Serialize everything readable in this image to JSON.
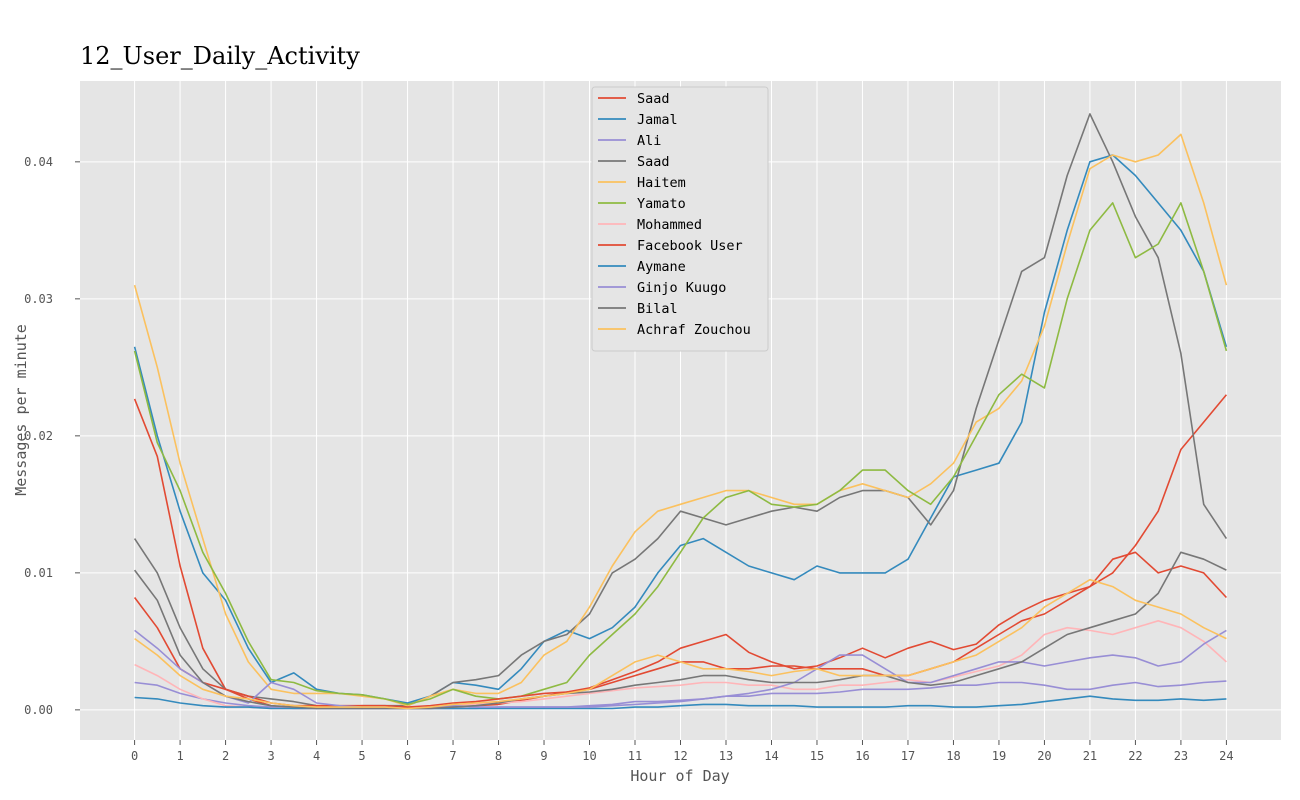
{
  "chart_data": {
    "type": "line",
    "title": "12_User_Daily_Activity",
    "xlabel": "Hour of Day",
    "ylabel": "Messages per minute",
    "xlim": [
      -1.2,
      25.2
    ],
    "ylim": [
      -0.0022,
      0.0459
    ],
    "x_ticks": [
      0,
      1,
      2,
      3,
      4,
      5,
      6,
      7,
      8,
      9,
      10,
      11,
      12,
      13,
      14,
      15,
      16,
      17,
      18,
      19,
      20,
      21,
      22,
      23,
      24
    ],
    "y_ticks": [
      0.0,
      0.01,
      0.02,
      0.03,
      0.04
    ],
    "y_tick_labels": [
      "0.00",
      "0.01",
      "0.02",
      "0.03",
      "0.04"
    ],
    "grid": true,
    "legend_position": "top-center",
    "background_color": "#e5e5e5",
    "x": [
      0,
      0.5,
      1,
      1.5,
      2,
      2.5,
      3,
      3.5,
      4,
      4.5,
      5,
      5.5,
      6,
      6.5,
      7,
      7.5,
      8,
      8.5,
      9,
      9.5,
      10,
      10.5,
      11,
      11.5,
      12,
      12.5,
      13,
      13.5,
      14,
      14.5,
      15,
      15.5,
      16,
      16.5,
      17,
      17.5,
      18,
      18.5,
      19,
      19.5,
      20,
      20.5,
      21,
      21.5,
      22,
      22.5,
      23,
      23.5,
      24
    ],
    "series": [
      {
        "name": "Saad",
        "color": "#E24A33",
        "values": [
          0.0227,
          0.0185,
          0.0105,
          0.0045,
          0.0015,
          0.0008,
          0.0003,
          0.0001,
          0.0001,
          0.0001,
          0.0001,
          0.0001,
          0.0001,
          0.0001,
          0.0002,
          0.0003,
          0.0004,
          0.0007,
          0.001,
          0.0013,
          0.0016,
          0.0022,
          0.0028,
          0.0035,
          0.0045,
          0.005,
          0.0055,
          0.0042,
          0.0035,
          0.003,
          0.0032,
          0.0038,
          0.0045,
          0.0038,
          0.0045,
          0.005,
          0.0044,
          0.0048,
          0.0062,
          0.0072,
          0.008,
          0.0085,
          0.009,
          0.01,
          0.012,
          0.0145,
          0.019,
          0.021,
          0.023
        ]
      },
      {
        "name": "Jamal",
        "color": "#348ABD",
        "values": [
          0.0265,
          0.02,
          0.0145,
          0.01,
          0.008,
          0.0045,
          0.002,
          0.0027,
          0.0015,
          0.0012,
          0.0011,
          0.0008,
          0.0005,
          0.001,
          0.002,
          0.0018,
          0.0015,
          0.003,
          0.005,
          0.0058,
          0.0052,
          0.006,
          0.0075,
          0.01,
          0.012,
          0.0125,
          0.0115,
          0.0105,
          0.01,
          0.0095,
          0.0105,
          0.01,
          0.01,
          0.01,
          0.011,
          0.014,
          0.017,
          0.0175,
          0.018,
          0.021,
          0.029,
          0.035,
          0.04,
          0.0405,
          0.039,
          0.037,
          0.035,
          0.032,
          0.0265
        ]
      },
      {
        "name": "Ali",
        "color": "#988ED5",
        "values": [
          0.002,
          0.0018,
          0.0012,
          0.0008,
          0.0005,
          0.0003,
          0.0002,
          0.0001,
          0.0001,
          0.0001,
          0.0001,
          0.0001,
          0.0001,
          0.0001,
          0.0001,
          0.0001,
          0.0002,
          0.0002,
          0.0002,
          0.0002,
          0.0003,
          0.0004,
          0.0006,
          0.0006,
          0.0007,
          0.0008,
          0.001,
          0.001,
          0.0012,
          0.0012,
          0.0012,
          0.0013,
          0.0015,
          0.0015,
          0.0015,
          0.0016,
          0.0018,
          0.0018,
          0.002,
          0.002,
          0.0018,
          0.0015,
          0.0015,
          0.0018,
          0.002,
          0.0017,
          0.0018,
          0.002,
          0.0021
        ]
      },
      {
        "name": "Saad",
        "color": "#777777",
        "values": [
          0.0125,
          0.01,
          0.006,
          0.003,
          0.0015,
          0.001,
          0.0008,
          0.0006,
          0.0003,
          0.0002,
          0.0003,
          0.0003,
          0.0003,
          0.001,
          0.002,
          0.0022,
          0.0025,
          0.004,
          0.005,
          0.0055,
          0.007,
          0.01,
          0.011,
          0.0125,
          0.0145,
          0.014,
          0.0135,
          0.014,
          0.0145,
          0.0148,
          0.0145,
          0.0155,
          0.016,
          0.016,
          0.0155,
          0.0135,
          0.016,
          0.022,
          0.027,
          0.032,
          0.033,
          0.039,
          0.0435,
          0.04,
          0.036,
          0.033,
          0.026,
          0.015,
          0.0125
        ]
      },
      {
        "name": "Haitem",
        "color": "#FBC15E",
        "values": [
          0.031,
          0.025,
          0.018,
          0.0125,
          0.007,
          0.0035,
          0.0015,
          0.0012,
          0.0012,
          0.0012,
          0.001,
          0.0008,
          0.0003,
          0.001,
          0.0015,
          0.0012,
          0.0012,
          0.002,
          0.004,
          0.005,
          0.0075,
          0.0105,
          0.013,
          0.0145,
          0.015,
          0.0155,
          0.016,
          0.016,
          0.0155,
          0.015,
          0.015,
          0.016,
          0.0165,
          0.016,
          0.0155,
          0.0165,
          0.018,
          0.021,
          0.022,
          0.024,
          0.028,
          0.034,
          0.0395,
          0.0405,
          0.04,
          0.0405,
          0.042,
          0.037,
          0.031
        ]
      },
      {
        "name": "Yamato",
        "color": "#8EBA42",
        "values": [
          0.0262,
          0.0195,
          0.016,
          0.0115,
          0.0085,
          0.005,
          0.0022,
          0.002,
          0.0014,
          0.0012,
          0.0011,
          0.0008,
          0.0004,
          0.0008,
          0.0015,
          0.001,
          0.0008,
          0.001,
          0.0015,
          0.002,
          0.004,
          0.0055,
          0.007,
          0.009,
          0.0115,
          0.014,
          0.0155,
          0.016,
          0.015,
          0.0148,
          0.015,
          0.016,
          0.0175,
          0.0175,
          0.016,
          0.015,
          0.017,
          0.02,
          0.023,
          0.0245,
          0.0235,
          0.03,
          0.035,
          0.037,
          0.033,
          0.034,
          0.037,
          0.032,
          0.0262
        ]
      },
      {
        "name": "Mohammed",
        "color": "#FFB5B8",
        "values": [
          0.0033,
          0.0025,
          0.0015,
          0.0008,
          0.0003,
          0.0002,
          0.0001,
          0.0001,
          0.0001,
          0.0001,
          0.0001,
          0.0001,
          0.0001,
          0.0002,
          0.0003,
          0.0004,
          0.0005,
          0.0006,
          0.0008,
          0.001,
          0.0012,
          0.0014,
          0.0016,
          0.0017,
          0.0018,
          0.002,
          0.002,
          0.0018,
          0.0018,
          0.0015,
          0.0015,
          0.0018,
          0.0018,
          0.002,
          0.0022,
          0.002,
          0.0024,
          0.0028,
          0.0032,
          0.004,
          0.0055,
          0.006,
          0.0058,
          0.0055,
          0.006,
          0.0065,
          0.006,
          0.005,
          0.0035
        ]
      },
      {
        "name": "Facebook User",
        "color": "#E24A33",
        "values": [
          0.0082,
          0.006,
          0.003,
          0.002,
          0.0015,
          0.001,
          0.0005,
          0.0003,
          0.0003,
          0.0003,
          0.0003,
          0.0003,
          0.0002,
          0.0003,
          0.0005,
          0.0006,
          0.0008,
          0.001,
          0.0012,
          0.0013,
          0.0015,
          0.002,
          0.0025,
          0.003,
          0.0035,
          0.0035,
          0.003,
          0.003,
          0.0032,
          0.0032,
          0.003,
          0.003,
          0.003,
          0.0025,
          0.0025,
          0.003,
          0.0035,
          0.0045,
          0.0055,
          0.0065,
          0.007,
          0.008,
          0.009,
          0.011,
          0.0115,
          0.01,
          0.0105,
          0.01,
          0.0082
        ]
      },
      {
        "name": "Aymane",
        "color": "#348ABD",
        "values": [
          0.0009,
          0.0008,
          0.0005,
          0.0003,
          0.0002,
          0.0002,
          0.0001,
          0.0001,
          0.0001,
          0.0001,
          0.0001,
          0.0001,
          0.0001,
          0.0001,
          0.0001,
          0.0001,
          0.0001,
          0.0001,
          0.0001,
          0.0001,
          0.0001,
          0.0001,
          0.0002,
          0.0002,
          0.0003,
          0.0004,
          0.0004,
          0.0003,
          0.0003,
          0.0003,
          0.0002,
          0.0002,
          0.0002,
          0.0002,
          0.0003,
          0.0003,
          0.0002,
          0.0002,
          0.0003,
          0.0004,
          0.0006,
          0.0008,
          0.001,
          0.0008,
          0.0007,
          0.0007,
          0.0008,
          0.0007,
          0.0008
        ]
      },
      {
        "name": "Ginjo Kuugo",
        "color": "#988ED5",
        "values": [
          0.0058,
          0.0045,
          0.003,
          0.002,
          0.001,
          0.0005,
          0.002,
          0.0015,
          0.0005,
          0.0003,
          0.0002,
          0.0002,
          0.0001,
          0.0002,
          0.0003,
          0.0002,
          0.0002,
          0.0002,
          0.0002,
          0.0002,
          0.0002,
          0.0003,
          0.0004,
          0.0005,
          0.0006,
          0.0008,
          0.001,
          0.0012,
          0.0015,
          0.002,
          0.003,
          0.004,
          0.004,
          0.003,
          0.002,
          0.002,
          0.0025,
          0.003,
          0.0035,
          0.0035,
          0.0032,
          0.0035,
          0.0038,
          0.004,
          0.0038,
          0.0032,
          0.0035,
          0.0048,
          0.0058
        ]
      },
      {
        "name": "Bilal",
        "color": "#777777",
        "values": [
          0.0102,
          0.008,
          0.004,
          0.002,
          0.001,
          0.0006,
          0.0003,
          0.0002,
          0.0001,
          0.0001,
          0.0001,
          0.0001,
          0.0001,
          0.0001,
          0.0002,
          0.0003,
          0.0005,
          0.0008,
          0.001,
          0.0012,
          0.0013,
          0.0015,
          0.0018,
          0.002,
          0.0022,
          0.0025,
          0.0025,
          0.0022,
          0.002,
          0.002,
          0.002,
          0.0022,
          0.0025,
          0.0025,
          0.002,
          0.0018,
          0.002,
          0.0025,
          0.003,
          0.0035,
          0.0045,
          0.0055,
          0.006,
          0.0065,
          0.007,
          0.0085,
          0.0115,
          0.011,
          0.0102
        ]
      },
      {
        "name": "Achraf Zouchou",
        "color": "#FBC15E",
        "values": [
          0.0052,
          0.004,
          0.0025,
          0.0015,
          0.001,
          0.0008,
          0.0005,
          0.0003,
          0.0002,
          0.0002,
          0.0002,
          0.0002,
          0.0001,
          0.0002,
          0.0004,
          0.0005,
          0.0006,
          0.0008,
          0.001,
          0.0012,
          0.0015,
          0.0025,
          0.0035,
          0.004,
          0.0035,
          0.003,
          0.003,
          0.0028,
          0.0025,
          0.0028,
          0.003,
          0.0025,
          0.0025,
          0.0025,
          0.0025,
          0.003,
          0.0035,
          0.004,
          0.005,
          0.006,
          0.0075,
          0.0085,
          0.0095,
          0.009,
          0.008,
          0.0075,
          0.007,
          0.006,
          0.0052
        ]
      }
    ]
  }
}
